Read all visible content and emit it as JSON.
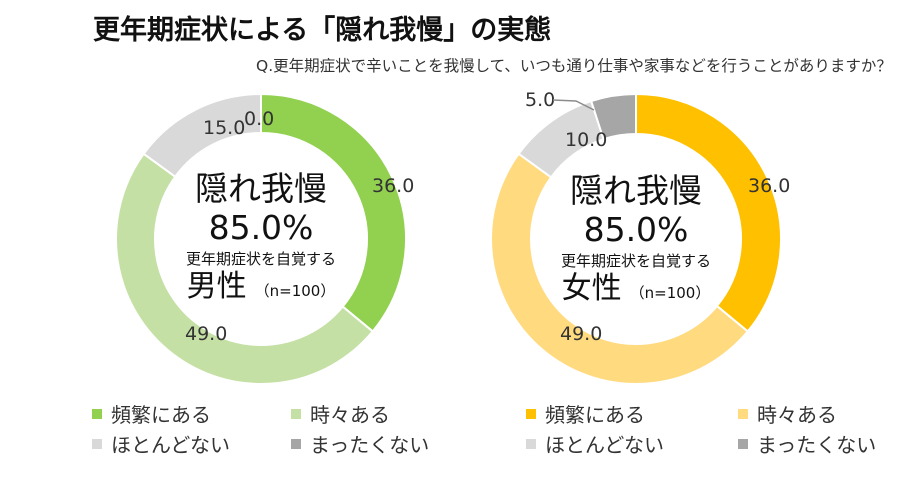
{
  "header": {
    "title": "更年期症状による「隠れ我慢」の実態",
    "question": "Q.更年期症状で辛いことを我慢して、いつも通り仕事や家事などを行うことがありますか？"
  },
  "chart_data": [
    {
      "type": "pie",
      "variant": "donut",
      "group": "男性",
      "categories": [
        "頻繁にある",
        "時々ある",
        "ほとんどない",
        "まったくない"
      ],
      "values": [
        36.0,
        49.0,
        15.0,
        0.0
      ],
      "value_labels": [
        "36.0",
        "49.0",
        "15.0",
        "0.0"
      ],
      "colors": [
        "#92D050",
        "#C5E0A5",
        "#D9D9D9",
        "#A6A6A6"
      ],
      "center": {
        "headline": "隠れ我慢",
        "percent": "85.0%",
        "subtext": "更年期症状を自覚する",
        "gender": "男性",
        "sample": "（n=100）"
      },
      "legend_position": "bottom"
    },
    {
      "type": "pie",
      "variant": "donut",
      "group": "女性",
      "categories": [
        "頻繁にある",
        "時々ある",
        "ほとんどない",
        "まったくない"
      ],
      "values": [
        36.0,
        49.0,
        10.0,
        5.0
      ],
      "value_labels": [
        "36.0",
        "49.0",
        "10.0",
        "5.0"
      ],
      "colors": [
        "#FFC000",
        "#FFDA7F",
        "#D9D9D9",
        "#A6A6A6"
      ],
      "center": {
        "headline": "隠れ我慢",
        "percent": "85.0%",
        "subtext": "更年期症状を自覚する",
        "gender": "女性",
        "sample": "（n=100）"
      },
      "legend_position": "bottom"
    }
  ]
}
